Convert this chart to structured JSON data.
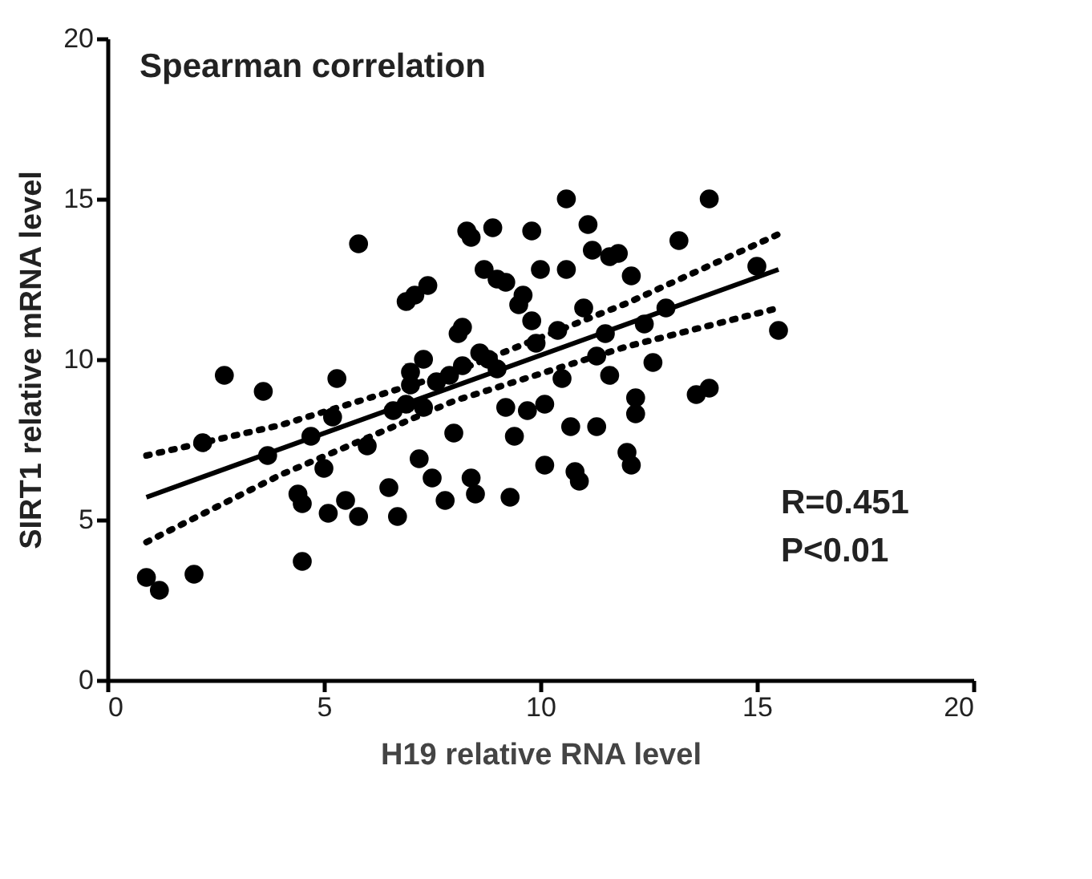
{
  "chart_data": {
    "type": "scatter",
    "xlabel": "H19 relative RNA level",
    "ylabel": "SIRT1 relative mRNA level",
    "xlim": [
      0,
      20
    ],
    "ylim": [
      0,
      20
    ],
    "xticks": [
      0,
      5,
      10,
      15,
      20
    ],
    "yticks": [
      0,
      5,
      10,
      15,
      20
    ],
    "grid": false,
    "legend": false,
    "annotations": [
      "Spearman correlation",
      "R=0.451",
      "P<0.01"
    ],
    "series": [
      {
        "type": "scatter",
        "marker": "circle",
        "color": "#000000",
        "x": [
          0.9,
          1.2,
          2.0,
          4.5,
          2.2,
          2.7,
          3.6,
          3.7,
          4.4,
          4.5,
          4.7,
          5.0,
          5.1,
          5.2,
          5.3,
          5.5,
          5.8,
          5.8,
          6.0,
          6.5,
          6.6,
          6.7,
          6.9,
          7.0,
          7.0,
          6.9,
          7.1,
          7.2,
          7.3,
          7.3,
          7.4,
          7.5,
          7.6,
          7.8,
          7.9,
          8.0,
          8.1,
          8.2,
          8.2,
          8.3,
          8.4,
          8.4,
          8.5,
          8.6,
          8.7,
          8.8,
          8.9,
          9.0,
          9.0,
          9.2,
          9.2,
          9.3,
          9.4,
          9.5,
          9.6,
          9.7,
          9.8,
          9.8,
          9.9,
          10.0,
          10.1,
          10.1,
          10.4,
          10.5,
          10.6,
          10.6,
          10.7,
          10.8,
          10.9,
          11.0,
          11.1,
          11.2,
          11.3,
          11.3,
          11.5,
          11.6,
          11.6,
          11.8,
          12.0,
          12.1,
          12.1,
          12.2,
          12.2,
          12.4,
          12.6,
          12.9,
          13.2,
          13.6,
          13.9,
          13.9,
          15.0,
          15.5
        ],
        "values": [
          3.2,
          2.8,
          3.3,
          3.7,
          7.4,
          9.5,
          9.0,
          7.0,
          5.8,
          5.5,
          7.6,
          6.6,
          5.2,
          8.2,
          9.4,
          5.6,
          5.1,
          13.6,
          7.3,
          6.0,
          8.4,
          5.1,
          8.6,
          9.2,
          9.6,
          11.8,
          12.0,
          6.9,
          8.5,
          10.0,
          12.3,
          6.3,
          9.3,
          5.6,
          9.5,
          7.7,
          10.8,
          11.0,
          9.8,
          14.0,
          13.8,
          6.3,
          5.8,
          10.2,
          12.8,
          10.0,
          14.1,
          12.5,
          9.7,
          12.4,
          8.5,
          5.7,
          7.6,
          11.7,
          12.0,
          8.4,
          14.0,
          11.2,
          10.5,
          12.8,
          8.6,
          6.7,
          10.9,
          9.4,
          12.8,
          15.0,
          7.9,
          6.5,
          6.2,
          11.6,
          14.2,
          13.4,
          10.1,
          7.9,
          10.8,
          9.5,
          13.2,
          13.3,
          7.1,
          6.7,
          12.6,
          8.3,
          8.8,
          11.1,
          9.9,
          11.6,
          13.7,
          8.9,
          9.1,
          15.0,
          12.9,
          10.9
        ]
      },
      {
        "type": "line",
        "line_style": "solid",
        "color": "#000000",
        "x": [
          0.9,
          15.5
        ],
        "values": [
          5.7,
          12.8
        ]
      },
      {
        "type": "line",
        "line_style": "dotted",
        "color": "#000000",
        "x": [
          0.9,
          4,
          8,
          12,
          15.5
        ],
        "values": [
          7.0,
          7.95,
          9.6,
          11.75,
          13.9
        ]
      },
      {
        "type": "line",
        "line_style": "dotted",
        "color": "#000000",
        "x": [
          0.9,
          4,
          8,
          12,
          15.5
        ],
        "values": [
          4.3,
          6.4,
          8.7,
          10.4,
          11.6
        ]
      }
    ]
  }
}
